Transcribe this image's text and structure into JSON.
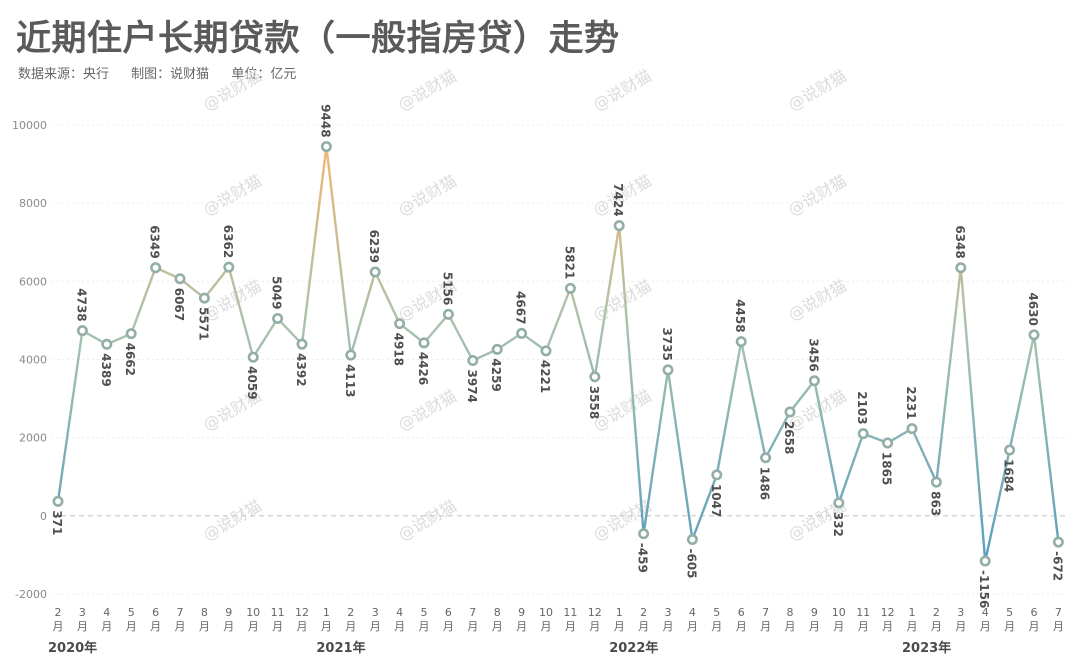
{
  "header": {
    "title": "近期住户长期贷款（一般指房贷）走势",
    "source": "数据来源：央行",
    "maker": "制图：说财猫",
    "unit": "单位：亿元"
  },
  "watermark": "@说财猫",
  "colors": {
    "low": "#5b9fbd",
    "mid": "#a6c2ae",
    "high": "#f0b872",
    "marker_fill": "#ffffff",
    "marker_stroke": "#93aea6",
    "grid": "#ececec",
    "zero_line": "#c8c8c8"
  },
  "chart_data": {
    "type": "line",
    "title": "近期住户长期贷款（一般指房贷）走势",
    "unit": "亿元",
    "ylim": [
      -2000,
      10000
    ],
    "yticks": [
      -2000,
      0,
      2000,
      4000,
      6000,
      8000,
      10000
    ],
    "grid": true,
    "x_month_labels": [
      "2\n月",
      "3\n月",
      "4\n月",
      "5\n月",
      "6\n月",
      "7\n月",
      "8\n月",
      "9\n月",
      "10\n月",
      "11\n月",
      "12\n月",
      "1\n月",
      "2\n月",
      "3\n月",
      "4\n月",
      "5\n月",
      "6\n月",
      "7\n月",
      "8\n月",
      "9\n月",
      "10\n月",
      "11\n月",
      "12\n月",
      "1\n月",
      "2\n月",
      "3\n月",
      "4\n月",
      "5\n月",
      "6\n月",
      "7\n月",
      "8\n月",
      "9\n月",
      "10\n月",
      "11\n月",
      "12\n月",
      "1\n月",
      "2\n月",
      "3\n月",
      "4\n月",
      "5\n月",
      "6\n月",
      "7\n月"
    ],
    "x_dates": [
      "2020-02",
      "2020-03",
      "2020-04",
      "2020-05",
      "2020-06",
      "2020-07",
      "2020-08",
      "2020-09",
      "2020-10",
      "2020-11",
      "2020-12",
      "2021-01",
      "2021-02",
      "2021-03",
      "2021-04",
      "2021-05",
      "2021-06",
      "2021-07",
      "2021-08",
      "2021-09",
      "2021-10",
      "2021-11",
      "2021-12",
      "2022-01",
      "2022-02",
      "2022-03",
      "2022-04",
      "2022-05",
      "2022-06",
      "2022-07",
      "2022-08",
      "2022-09",
      "2022-10",
      "2022-11",
      "2022-12",
      "2023-01",
      "2023-02",
      "2023-03",
      "2023-04",
      "2023-05",
      "2023-06",
      "2023-07"
    ],
    "year_labels": [
      {
        "label": "2020年",
        "index": 0
      },
      {
        "label": "2021年",
        "index": 11
      },
      {
        "label": "2022年",
        "index": 23
      },
      {
        "label": "2023年",
        "index": 35
      }
    ],
    "values": [
      371,
      4738,
      4389,
      4662,
      6349,
      6067,
      5571,
      6362,
      4059,
      5049,
      4392,
      9448,
      4113,
      6239,
      4918,
      4426,
      5156,
      3974,
      4259,
      4667,
      4221,
      5821,
      3558,
      7424,
      -459,
      3735,
      -605,
      1047,
      4458,
      1486,
      2658,
      3456,
      332,
      2103,
      1865,
      2231,
      863,
      6348,
      -1156,
      1684,
      4630,
      -672
    ]
  }
}
